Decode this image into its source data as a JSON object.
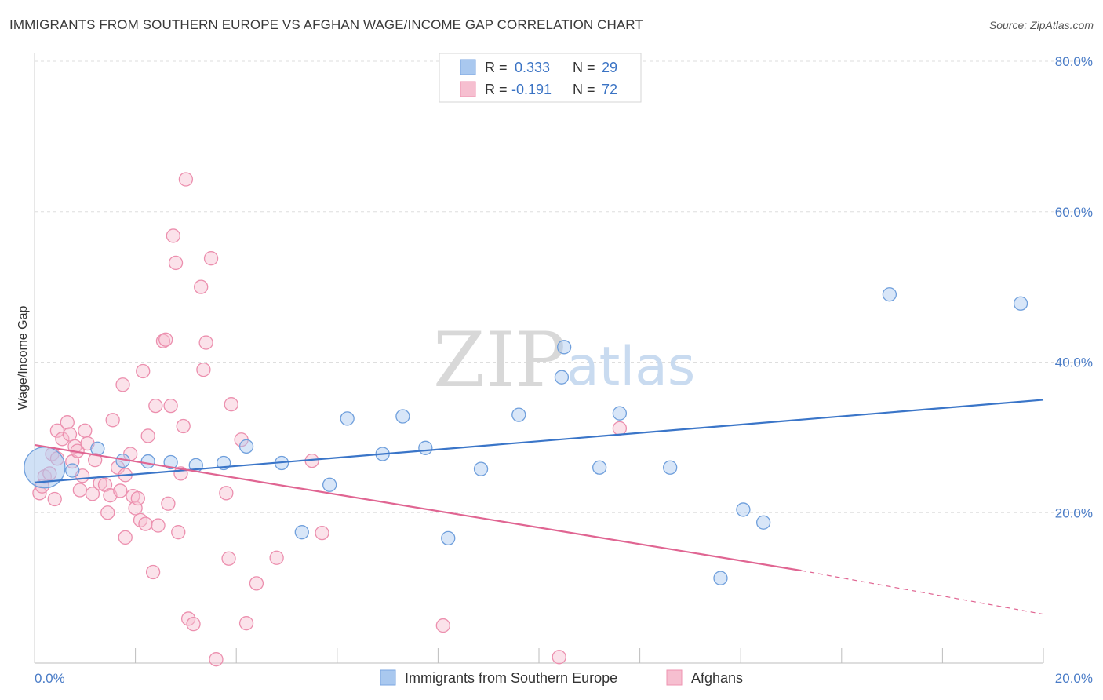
{
  "header": {
    "title": "IMMIGRANTS FROM SOUTHERN EUROPE VS AFGHAN WAGE/INCOME GAP CORRELATION CHART",
    "source": "Source: ZipAtlas.com"
  },
  "watermark": {
    "part1": "ZIP",
    "part2": "atlas"
  },
  "legend": {
    "rows": [
      {
        "r_label": "R =",
        "r_value": "0.333",
        "n_label": "N =",
        "n_value": "29",
        "color": "#a9c8ef",
        "stroke": "#7aa6e0"
      },
      {
        "r_label": "R =",
        "r_value": "-0.191",
        "n_label": "N =",
        "n_value": "72",
        "color": "#f6bfd0",
        "stroke": "#ef93b1"
      }
    ]
  },
  "chart_data": {
    "type": "scatter",
    "title": "IMMIGRANTS FROM SOUTHERN EUROPE VS AFGHAN WAGE/INCOME GAP CORRELATION CHART",
    "ylabel": "Wage/Income Gap",
    "xlim": [
      0,
      20
    ],
    "ylim": [
      0,
      80
    ],
    "x_tick_labels": [
      "0.0%",
      "20.0%"
    ],
    "y_ticks": [
      20,
      40,
      60,
      80
    ],
    "y_tick_labels": [
      "20.0%",
      "40.0%",
      "60.0%",
      "80.0%"
    ],
    "grid": true,
    "legend_position": "top-center",
    "series": [
      {
        "name": "Immigrants from Southern Europe",
        "color": "#a9c8ef",
        "stroke": "#6f9fdc",
        "trend_color": "#3a75c8",
        "trend": {
          "x0": 0,
          "y0": 24.0,
          "x1": 20,
          "y1": 35.0
        },
        "points": [
          {
            "x": 0.2,
            "y": 26.0,
            "big": true
          },
          {
            "x": 0.75,
            "y": 25.6
          },
          {
            "x": 1.25,
            "y": 28.5
          },
          {
            "x": 1.75,
            "y": 26.9
          },
          {
            "x": 2.25,
            "y": 26.8
          },
          {
            "x": 2.7,
            "y": 26.7
          },
          {
            "x": 3.2,
            "y": 26.3
          },
          {
            "x": 3.75,
            "y": 26.6
          },
          {
            "x": 4.2,
            "y": 28.8
          },
          {
            "x": 4.9,
            "y": 26.6
          },
          {
            "x": 5.3,
            "y": 17.4
          },
          {
            "x": 5.85,
            "y": 23.7
          },
          {
            "x": 6.2,
            "y": 32.5
          },
          {
            "x": 6.9,
            "y": 27.8
          },
          {
            "x": 7.3,
            "y": 32.8
          },
          {
            "x": 7.75,
            "y": 28.6
          },
          {
            "x": 8.2,
            "y": 16.6
          },
          {
            "x": 8.85,
            "y": 25.8
          },
          {
            "x": 9.6,
            "y": 33.0
          },
          {
            "x": 10.5,
            "y": 42.0
          },
          {
            "x": 10.45,
            "y": 38.0
          },
          {
            "x": 11.2,
            "y": 26.0
          },
          {
            "x": 11.6,
            "y": 33.2
          },
          {
            "x": 12.6,
            "y": 26.0
          },
          {
            "x": 13.6,
            "y": 11.3
          },
          {
            "x": 14.05,
            "y": 20.4
          },
          {
            "x": 14.45,
            "y": 18.7
          },
          {
            "x": 16.95,
            "y": 49.0
          },
          {
            "x": 19.55,
            "y": 47.8
          }
        ]
      },
      {
        "name": "Afghans",
        "color": "#f6bfd0",
        "stroke": "#ec8fae",
        "trend_color": "#e06592",
        "trend": {
          "x0": 0,
          "y0": 29.0,
          "x1": 15.2,
          "y1": 12.3
        },
        "trend_dashed": {
          "x0": 15.2,
          "y0": 12.3,
          "x1": 20,
          "y1": 6.5
        },
        "points": [
          {
            "x": 0.1,
            "y": 22.6
          },
          {
            "x": 0.15,
            "y": 23.5
          },
          {
            "x": 0.2,
            "y": 24.8
          },
          {
            "x": 0.3,
            "y": 25.2
          },
          {
            "x": 0.35,
            "y": 27.8
          },
          {
            "x": 0.45,
            "y": 27.2
          },
          {
            "x": 0.4,
            "y": 21.8
          },
          {
            "x": 0.45,
            "y": 30.9
          },
          {
            "x": 0.55,
            "y": 29.8
          },
          {
            "x": 0.65,
            "y": 32.0
          },
          {
            "x": 0.7,
            "y": 30.4
          },
          {
            "x": 0.75,
            "y": 26.8
          },
          {
            "x": 0.8,
            "y": 28.8
          },
          {
            "x": 0.85,
            "y": 28.2
          },
          {
            "x": 0.9,
            "y": 23.0
          },
          {
            "x": 0.95,
            "y": 24.9
          },
          {
            "x": 1.0,
            "y": 30.9
          },
          {
            "x": 1.05,
            "y": 29.2
          },
          {
            "x": 1.15,
            "y": 22.5
          },
          {
            "x": 1.2,
            "y": 27.0
          },
          {
            "x": 1.3,
            "y": 23.9
          },
          {
            "x": 1.4,
            "y": 23.7
          },
          {
            "x": 1.45,
            "y": 20.0
          },
          {
            "x": 1.5,
            "y": 22.3
          },
          {
            "x": 1.55,
            "y": 32.3
          },
          {
            "x": 1.65,
            "y": 26.0
          },
          {
            "x": 1.7,
            "y": 22.9
          },
          {
            "x": 1.75,
            "y": 37.0
          },
          {
            "x": 1.8,
            "y": 25.0
          },
          {
            "x": 1.8,
            "y": 16.7
          },
          {
            "x": 1.9,
            "y": 27.8
          },
          {
            "x": 1.95,
            "y": 22.2
          },
          {
            "x": 2.0,
            "y": 20.6
          },
          {
            "x": 2.05,
            "y": 21.9
          },
          {
            "x": 2.1,
            "y": 19.0
          },
          {
            "x": 2.15,
            "y": 38.8
          },
          {
            "x": 2.2,
            "y": 18.5
          },
          {
            "x": 2.25,
            "y": 30.2
          },
          {
            "x": 2.35,
            "y": 12.1
          },
          {
            "x": 2.4,
            "y": 34.2
          },
          {
            "x": 2.45,
            "y": 18.3
          },
          {
            "x": 2.55,
            "y": 42.8
          },
          {
            "x": 2.6,
            "y": 43.0
          },
          {
            "x": 2.65,
            "y": 21.2
          },
          {
            "x": 2.7,
            "y": 34.2
          },
          {
            "x": 2.75,
            "y": 56.8
          },
          {
            "x": 2.8,
            "y": 53.2
          },
          {
            "x": 2.85,
            "y": 17.4
          },
          {
            "x": 2.9,
            "y": 25.2
          },
          {
            "x": 2.95,
            "y": 31.5
          },
          {
            "x": 3.0,
            "y": 64.3
          },
          {
            "x": 3.05,
            "y": 5.9
          },
          {
            "x": 3.15,
            "y": 5.2
          },
          {
            "x": 3.3,
            "y": 50.0
          },
          {
            "x": 3.35,
            "y": 39.0
          },
          {
            "x": 3.4,
            "y": 42.6
          },
          {
            "x": 3.5,
            "y": 53.8
          },
          {
            "x": 3.6,
            "y": 0.5
          },
          {
            "x": 3.8,
            "y": 22.6
          },
          {
            "x": 3.85,
            "y": 13.9
          },
          {
            "x": 3.9,
            "y": 34.4
          },
          {
            "x": 4.1,
            "y": 29.7
          },
          {
            "x": 4.2,
            "y": 5.3
          },
          {
            "x": 4.4,
            "y": 10.6
          },
          {
            "x": 4.8,
            "y": 14.0
          },
          {
            "x": 5.5,
            "y": 26.9
          },
          {
            "x": 5.7,
            "y": 17.3
          },
          {
            "x": 8.1,
            "y": 5.0
          },
          {
            "x": 10.4,
            "y": 0.8
          },
          {
            "x": 11.6,
            "y": 31.2
          }
        ]
      }
    ]
  },
  "bottom_legend": {
    "items": [
      {
        "label": "Immigrants from Southern Europe",
        "color": "#a9c8ef",
        "stroke": "#7aa6e0"
      },
      {
        "label": "Afghans",
        "color": "#f6bfd0",
        "stroke": "#ef93b1"
      }
    ]
  }
}
